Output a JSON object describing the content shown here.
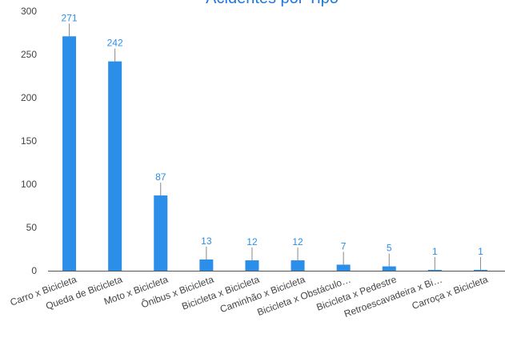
{
  "chart_data": {
    "type": "bar",
    "title": "Acidentes por Tipo",
    "xlabel": "",
    "ylabel": "",
    "categories": [
      "Carro x Bicicleta",
      "Queda de Bicicleta",
      "Moto x Bicicleta",
      "Ônibus x Bicicleta",
      "Bicicleta x Bicicleta",
      "Caminhão x Bicicleta",
      "Bicicleta x Obstáculo…",
      "Bicicleta x Pedestre",
      "Retroescavadeira x Bi…",
      "Carroça x Bicicleta"
    ],
    "values": [
      271,
      242,
      87,
      13,
      12,
      12,
      7,
      5,
      1,
      1
    ],
    "ylim": [
      0,
      300
    ],
    "yticks": [
      0,
      50,
      100,
      150,
      200,
      250,
      300
    ],
    "grid": false,
    "legend": "none",
    "colors": {
      "bar": "#2b8ee8",
      "title": "#1f78d8",
      "data_label": "#2b8ee8",
      "axis_line": "#555555",
      "tick_text": "#444444",
      "leader_line": "#888888"
    }
  }
}
